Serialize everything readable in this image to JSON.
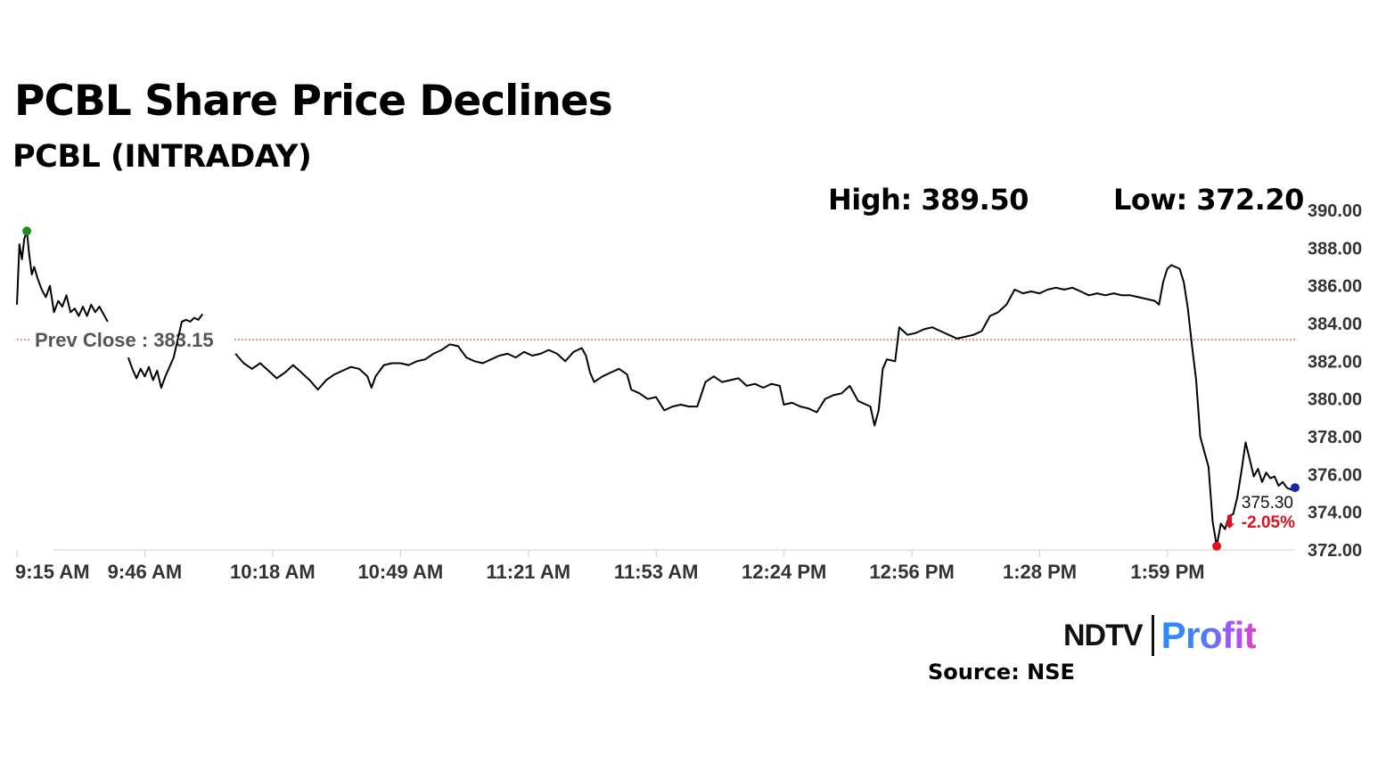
{
  "header": {
    "title": "PCBL Share Price Declines",
    "subtitle": "PCBL (INTRADAY)"
  },
  "stats": {
    "high_label": "High: 389.50",
    "low_label": "Low: 372.20"
  },
  "chart_data": {
    "type": "line",
    "title": "PCBL Share Price Declines",
    "subtitle": "PCBL (INTRADAY)",
    "x_ticks": [
      "9:15 AM",
      "9:46 AM",
      "10:18 AM",
      "10:49 AM",
      "11:21 AM",
      "11:53 AM",
      "12:24 PM",
      "12:56 PM",
      "1:28 PM",
      "1:59 PM"
    ],
    "x_range_minutes": [
      0,
      310
    ],
    "y_ticks": [
      "372.00",
      "374.00",
      "376.00",
      "378.00",
      "380.00",
      "382.00",
      "384.00",
      "386.00",
      "388.00",
      "390.00"
    ],
    "ylim": [
      372,
      390
    ],
    "prev_close": 383.15,
    "prev_close_label": "Prev Close : 383.15",
    "high": 389.5,
    "low": 372.2,
    "last_price_label": "375.30",
    "change_label": "⬇ -2.05%",
    "colors": {
      "line": "#000000",
      "prev_close": "#cc2222",
      "high_marker": "#1a8f1a",
      "low_marker": "#e01020",
      "last_marker": "#1428a8",
      "change": "#e01020",
      "axis": "#cccccc"
    },
    "series": [
      {
        "name": "PCBL",
        "points": [
          [
            0,
            385.0
          ],
          [
            0.6,
            388.2
          ],
          [
            1.2,
            387.4
          ],
          [
            1.8,
            388.5
          ],
          [
            2.4,
            388.9
          ],
          [
            3.0,
            387.6
          ],
          [
            3.6,
            386.6
          ],
          [
            4.2,
            387.0
          ],
          [
            5,
            386.4
          ],
          [
            6,
            385.8
          ],
          [
            7,
            385.4
          ],
          [
            8,
            386.0
          ],
          [
            9,
            384.6
          ],
          [
            10,
            385.2
          ],
          [
            11,
            384.9
          ],
          [
            12,
            385.5
          ],
          [
            13,
            384.6
          ],
          [
            14,
            384.8
          ],
          [
            15,
            384.4
          ],
          [
            16,
            384.9
          ],
          [
            17,
            384.4
          ],
          [
            18,
            385.0
          ],
          [
            19,
            384.6
          ],
          [
            20,
            384.9
          ],
          [
            21,
            384.5
          ],
          [
            22,
            384.1
          ],
          [
            27,
            382.2
          ],
          [
            28,
            381.6
          ],
          [
            29,
            381.1
          ],
          [
            30,
            381.6
          ],
          [
            31,
            381.2
          ],
          [
            32,
            381.7
          ],
          [
            33,
            381.0
          ],
          [
            34,
            381.5
          ],
          [
            35,
            380.6
          ],
          [
            36,
            381.2
          ],
          [
            37,
            381.7
          ],
          [
            38,
            382.2
          ],
          [
            40,
            384.1
          ],
          [
            41,
            384.2
          ],
          [
            42,
            384.1
          ],
          [
            43,
            384.3
          ],
          [
            44,
            384.2
          ],
          [
            45,
            384.5
          ],
          [
            53,
            382.4
          ],
          [
            55,
            381.9
          ],
          [
            57,
            381.6
          ],
          [
            59,
            381.9
          ],
          [
            61,
            381.5
          ],
          [
            63,
            381.1
          ],
          [
            65,
            381.4
          ],
          [
            67,
            381.8
          ],
          [
            69,
            381.4
          ],
          [
            71,
            381.0
          ],
          [
            73,
            380.5
          ],
          [
            75,
            381.0
          ],
          [
            77,
            381.3
          ],
          [
            79,
            381.5
          ],
          [
            81,
            381.7
          ],
          [
            83,
            381.6
          ],
          [
            85,
            381.2
          ],
          [
            86,
            380.6
          ],
          [
            87,
            381.2
          ],
          [
            89,
            381.8
          ],
          [
            91,
            381.9
          ],
          [
            93,
            381.9
          ],
          [
            95,
            381.8
          ],
          [
            97,
            382.0
          ],
          [
            99,
            382.1
          ],
          [
            101,
            382.4
          ],
          [
            103,
            382.6
          ],
          [
            105,
            382.9
          ],
          [
            107,
            382.8
          ],
          [
            109,
            382.2
          ],
          [
            111,
            382.0
          ],
          [
            113,
            381.9
          ],
          [
            115,
            382.1
          ],
          [
            117,
            382.3
          ],
          [
            119,
            382.4
          ],
          [
            121,
            382.2
          ],
          [
            123,
            382.5
          ],
          [
            125,
            382.3
          ],
          [
            127,
            382.4
          ],
          [
            129,
            382.6
          ],
          [
            131,
            382.4
          ],
          [
            133,
            382.0
          ],
          [
            135,
            382.5
          ],
          [
            137,
            382.7
          ],
          [
            138,
            382.3
          ],
          [
            139,
            381.4
          ],
          [
            140,
            380.9
          ],
          [
            142,
            381.2
          ],
          [
            144,
            381.4
          ],
          [
            146,
            381.6
          ],
          [
            148,
            381.3
          ],
          [
            149,
            380.5
          ],
          [
            151,
            380.3
          ],
          [
            153,
            380.0
          ],
          [
            155,
            380.1
          ],
          [
            157,
            379.4
          ],
          [
            159,
            379.6
          ],
          [
            161,
            379.7
          ],
          [
            163,
            379.6
          ],
          [
            165,
            379.6
          ],
          [
            167,
            380.9
          ],
          [
            169,
            381.2
          ],
          [
            171,
            380.9
          ],
          [
            173,
            381.0
          ],
          [
            175,
            381.1
          ],
          [
            177,
            380.7
          ],
          [
            179,
            380.8
          ],
          [
            181,
            380.6
          ],
          [
            183,
            380.8
          ],
          [
            185,
            380.7
          ],
          [
            186,
            379.7
          ],
          [
            188,
            379.8
          ],
          [
            190,
            379.6
          ],
          [
            192,
            379.5
          ],
          [
            194,
            379.3
          ],
          [
            196,
            380.0
          ],
          [
            198,
            380.2
          ],
          [
            200,
            380.3
          ],
          [
            202,
            380.7
          ],
          [
            204,
            379.9
          ],
          [
            206,
            379.7
          ],
          [
            207,
            379.6
          ],
          [
            208,
            378.6
          ],
          [
            209,
            379.4
          ],
          [
            210,
            381.6
          ],
          [
            211,
            382.1
          ],
          [
            213,
            382.0
          ],
          [
            214,
            383.8
          ],
          [
            216,
            383.4
          ],
          [
            218,
            383.5
          ],
          [
            220,
            383.7
          ],
          [
            222,
            383.8
          ],
          [
            224,
            383.6
          ],
          [
            226,
            383.4
          ],
          [
            228,
            383.2
          ],
          [
            230,
            383.3
          ],
          [
            232,
            383.4
          ],
          [
            234,
            383.6
          ],
          [
            236,
            384.4
          ],
          [
            238,
            384.6
          ],
          [
            240,
            385.0
          ],
          [
            242,
            385.8
          ],
          [
            244,
            385.6
          ],
          [
            246,
            385.7
          ],
          [
            248,
            385.6
          ],
          [
            250,
            385.8
          ],
          [
            252,
            385.9
          ],
          [
            254,
            385.8
          ],
          [
            256,
            385.9
          ],
          [
            258,
            385.7
          ],
          [
            260,
            385.5
          ],
          [
            262,
            385.6
          ],
          [
            264,
            385.5
          ],
          [
            266,
            385.6
          ],
          [
            268,
            385.5
          ],
          [
            270,
            385.5
          ],
          [
            272,
            385.4
          ],
          [
            274,
            385.3
          ],
          [
            276,
            385.2
          ],
          [
            277,
            385.0
          ],
          [
            278,
            386.2
          ],
          [
            279,
            386.9
          ],
          [
            280,
            387.1
          ],
          [
            281,
            387.0
          ],
          [
            282,
            386.9
          ],
          [
            283,
            386.2
          ],
          [
            284,
            384.8
          ],
          [
            285,
            382.8
          ],
          [
            286,
            381.0
          ],
          [
            287,
            378.0
          ],
          [
            288,
            377.2
          ],
          [
            289,
            376.4
          ],
          [
            290,
            373.5
          ],
          [
            291,
            372.2
          ],
          [
            292,
            373.4
          ],
          [
            293,
            373.1
          ],
          [
            294,
            373.8
          ],
          [
            295,
            373.9
          ],
          [
            296,
            374.8
          ],
          [
            297,
            376.2
          ],
          [
            298,
            377.7
          ],
          [
            299,
            376.8
          ],
          [
            300,
            375.9
          ],
          [
            301,
            376.3
          ],
          [
            302,
            375.6
          ],
          [
            303,
            376.1
          ],
          [
            304,
            375.8
          ],
          [
            305,
            375.9
          ],
          [
            306,
            375.4
          ],
          [
            307,
            375.6
          ],
          [
            308,
            375.3
          ],
          [
            309,
            375.2
          ],
          [
            310,
            375.3
          ]
        ]
      }
    ]
  },
  "footer": {
    "brand_left": "NDTV",
    "brand_right": "Profit",
    "source": "Source: NSE"
  }
}
